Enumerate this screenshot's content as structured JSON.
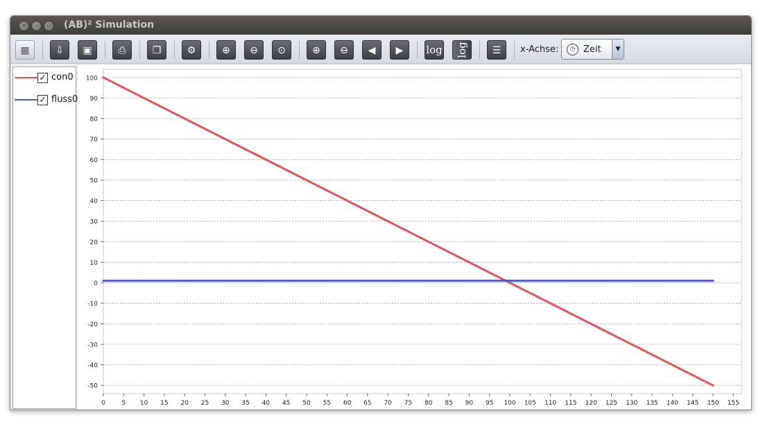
{
  "window": {
    "title": "(AB)² Simulation"
  },
  "toolbar": {
    "buttons": [
      {
        "name": "table-icon",
        "glyph": "▦"
      },
      {
        "name": "export-icon",
        "glyph": "⇩"
      },
      {
        "name": "image-icon",
        "glyph": "▣"
      },
      {
        "name": "print-icon",
        "glyph": "⎙"
      },
      {
        "name": "copy-icon",
        "glyph": "❐"
      },
      {
        "name": "settings-icon",
        "glyph": "⚙"
      },
      {
        "name": "zoom-in-icon",
        "glyph": "⊕"
      },
      {
        "name": "zoom-out-icon",
        "glyph": "⊖"
      },
      {
        "name": "zoom-reset-icon",
        "glyph": "⊙"
      },
      {
        "name": "zoom-in-horizontal-icon",
        "glyph": "⊕"
      },
      {
        "name": "zoom-out-horizontal-icon",
        "glyph": "⊖"
      },
      {
        "name": "pan-left-icon",
        "glyph": "◀"
      },
      {
        "name": "pan-right-icon",
        "glyph": "▶"
      },
      {
        "name": "log-x-icon",
        "glyph": "log"
      },
      {
        "name": "log-y-icon",
        "glyph": "log"
      },
      {
        "name": "list-icon",
        "glyph": "☰"
      }
    ],
    "xaxis_label": "x-Achse:",
    "xaxis_value": "Zeit",
    "xaxis_icon": "clock-icon"
  },
  "legend": [
    {
      "label": "con0",
      "color": "#f05050",
      "checked": true
    },
    {
      "label": "fluss0",
      "color": "#4a55dd",
      "checked": true
    }
  ],
  "chart_data": {
    "type": "line",
    "title": "",
    "xlabel": "",
    "ylabel": "",
    "xlim": [
      0,
      157
    ],
    "ylim": [
      -54,
      104
    ],
    "xticks": [
      0,
      5,
      10,
      15,
      20,
      25,
      30,
      35,
      40,
      45,
      50,
      55,
      60,
      65,
      70,
      75,
      80,
      85,
      90,
      95,
      100,
      105,
      110,
      115,
      120,
      125,
      130,
      135,
      140,
      145,
      150,
      155
    ],
    "yticks": [
      100,
      90,
      80,
      70,
      60,
      50,
      40,
      30,
      20,
      10,
      0,
      -10,
      -20,
      -30,
      -40,
      -50
    ],
    "grid": "horizontal-dashed",
    "series": [
      {
        "name": "con0",
        "color": "#f05050",
        "x": [
          0,
          150
        ],
        "y": [
          100,
          -50
        ]
      },
      {
        "name": "fluss0",
        "color": "#4a55dd",
        "x": [
          0,
          150
        ],
        "y": [
          1,
          1
        ]
      }
    ]
  }
}
